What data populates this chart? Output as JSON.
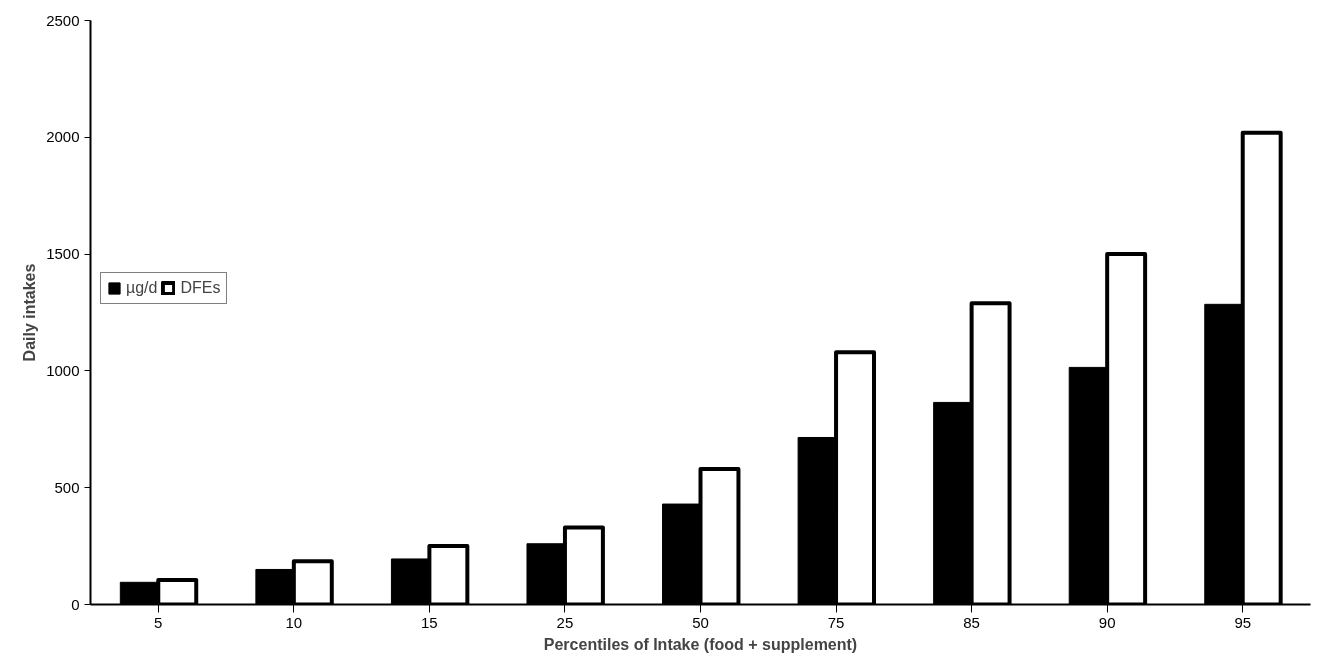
{
  "chart_data": {
    "type": "bar",
    "xlabel": "Percentiles of Intake (food + supplement)",
    "ylabel": "Daily intakes",
    "categories": [
      "5",
      "10",
      "15",
      "25",
      "50",
      "75",
      "85",
      "90",
      "95"
    ],
    "series": [
      {
        "name": "µg/d",
        "color": "#000000",
        "values": [
          95,
          150,
          195,
          260,
          430,
          715,
          865,
          1015,
          1285
        ]
      },
      {
        "name": "DFEs",
        "color": "#ffffff",
        "values": [
          105,
          185,
          250,
          330,
          580,
          1080,
          1290,
          1500,
          2020
        ]
      }
    ],
    "ylim": [
      0,
      2500
    ],
    "yticks": [
      0,
      500,
      1000,
      1500,
      2000,
      2500
    ],
    "grid": false,
    "legend": "left"
  }
}
